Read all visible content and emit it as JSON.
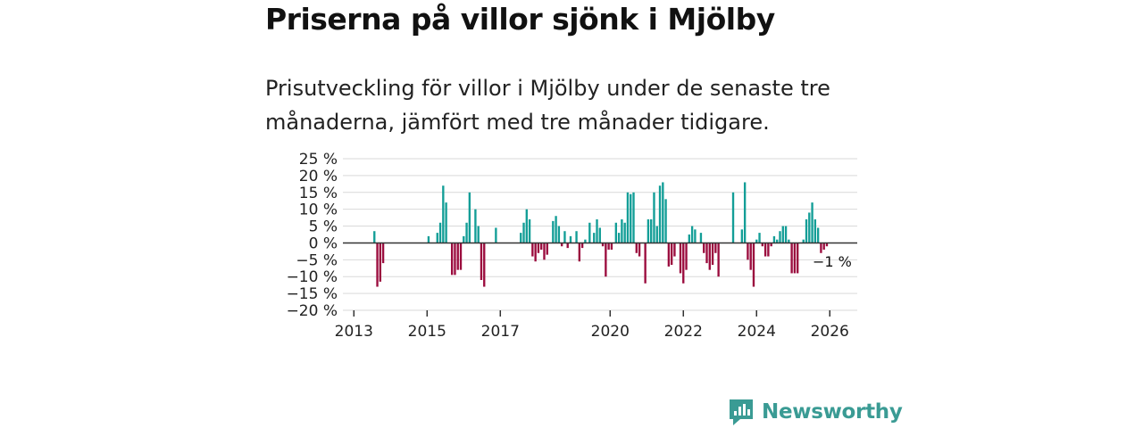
{
  "header": {
    "title": "Priserna på villor sjönk i Mjölby",
    "subtitle": "Prisutveckling för villor i Mjölby under de senaste tre månaderna, jämfört med tre månader tidigare."
  },
  "brand": {
    "name": "Newsworthy",
    "color": "#3a9b94"
  },
  "colors": {
    "positive": "#139e97",
    "negative": "#9b0c3e",
    "grid": "#d9d9d9",
    "zero": "#333333"
  },
  "chart_data": {
    "type": "bar",
    "title": "Priserna på villor sjönk i Mjölby",
    "ylabel": "",
    "xlabel": "",
    "ylim": [
      -20,
      25
    ],
    "y_ticks": [
      25,
      20,
      15,
      10,
      5,
      0,
      -5,
      -10,
      -15,
      -20
    ],
    "y_tick_labels": [
      "25 %",
      "20 %",
      "15 %",
      "10 %",
      "5 %",
      "0 %",
      "−5 %",
      "−10 %",
      "−15 %",
      "−20 %"
    ],
    "x_range": [
      2012.7,
      2026.75
    ],
    "x_ticks": [
      2013,
      2015,
      2017,
      2020,
      2022,
      2024,
      2026
    ],
    "x_tick_labels": [
      "2013",
      "2015",
      "2017",
      "2020",
      "2022",
      "2024",
      "2026"
    ],
    "annotation": {
      "text": "−1 %",
      "x": 2025.92,
      "y": -1
    },
    "series": [
      {
        "name": "Prisutveckling",
        "points": [
          [
            2013.56,
            3.5
          ],
          [
            2013.64,
            -13
          ],
          [
            2013.72,
            -11.5
          ],
          [
            2013.8,
            -6
          ],
          [
            2015.04,
            2
          ],
          [
            2015.28,
            3
          ],
          [
            2015.36,
            6
          ],
          [
            2015.44,
            17
          ],
          [
            2015.52,
            12
          ],
          [
            2015.68,
            -9.5
          ],
          [
            2015.76,
            -9.5
          ],
          [
            2015.84,
            -8
          ],
          [
            2015.92,
            -8
          ],
          [
            2016.0,
            2
          ],
          [
            2016.08,
            6
          ],
          [
            2016.16,
            15
          ],
          [
            2016.32,
            10
          ],
          [
            2016.4,
            5
          ],
          [
            2016.48,
            -11
          ],
          [
            2016.56,
            -13
          ],
          [
            2016.88,
            4.5
          ],
          [
            2017.56,
            3
          ],
          [
            2017.64,
            6
          ],
          [
            2017.72,
            10
          ],
          [
            2017.8,
            7
          ],
          [
            2017.88,
            -4
          ],
          [
            2017.96,
            -5.5
          ],
          [
            2018.04,
            -3
          ],
          [
            2018.12,
            -2
          ],
          [
            2018.2,
            -5
          ],
          [
            2018.28,
            -3.5
          ],
          [
            2018.44,
            6.5
          ],
          [
            2018.52,
            8
          ],
          [
            2018.6,
            5
          ],
          [
            2018.68,
            -1
          ],
          [
            2018.76,
            3.5
          ],
          [
            2018.84,
            -1.5
          ],
          [
            2018.92,
            2
          ],
          [
            2019.08,
            3.5
          ],
          [
            2019.16,
            -5.5
          ],
          [
            2019.24,
            -1.5
          ],
          [
            2019.32,
            1
          ],
          [
            2019.44,
            6
          ],
          [
            2019.56,
            3
          ],
          [
            2019.64,
            7
          ],
          [
            2019.72,
            4.5
          ],
          [
            2019.8,
            -1
          ],
          [
            2019.88,
            -10
          ],
          [
            2019.96,
            -2
          ],
          [
            2020.04,
            -2
          ],
          [
            2020.16,
            6
          ],
          [
            2020.24,
            3
          ],
          [
            2020.32,
            7
          ],
          [
            2020.4,
            6
          ],
          [
            2020.48,
            15
          ],
          [
            2020.56,
            14.5
          ],
          [
            2020.64,
            15
          ],
          [
            2020.72,
            -3
          ],
          [
            2020.8,
            -4
          ],
          [
            2020.96,
            -12
          ],
          [
            2021.04,
            7
          ],
          [
            2021.12,
            7
          ],
          [
            2021.2,
            15
          ],
          [
            2021.28,
            5
          ],
          [
            2021.36,
            17
          ],
          [
            2021.44,
            18
          ],
          [
            2021.52,
            13
          ],
          [
            2021.6,
            -7
          ],
          [
            2021.68,
            -6.5
          ],
          [
            2021.76,
            -4
          ],
          [
            2021.92,
            -9
          ],
          [
            2022.0,
            -12
          ],
          [
            2022.08,
            -8
          ],
          [
            2022.16,
            2.5
          ],
          [
            2022.24,
            5
          ],
          [
            2022.32,
            4
          ],
          [
            2022.48,
            3
          ],
          [
            2022.56,
            -3
          ],
          [
            2022.64,
            -6
          ],
          [
            2022.72,
            -8
          ],
          [
            2022.8,
            -6.5
          ],
          [
            2022.88,
            -3
          ],
          [
            2022.96,
            -10
          ],
          [
            2023.36,
            15
          ],
          [
            2023.6,
            4
          ],
          [
            2023.68,
            18
          ],
          [
            2023.76,
            -5
          ],
          [
            2023.84,
            -8
          ],
          [
            2023.92,
            -13
          ],
          [
            2024.0,
            1
          ],
          [
            2024.08,
            3
          ],
          [
            2024.16,
            -1
          ],
          [
            2024.24,
            -4
          ],
          [
            2024.32,
            -4
          ],
          [
            2024.4,
            -1
          ],
          [
            2024.48,
            2
          ],
          [
            2024.56,
            1
          ],
          [
            2024.64,
            3.5
          ],
          [
            2024.72,
            5
          ],
          [
            2024.8,
            5
          ],
          [
            2024.88,
            1
          ],
          [
            2024.96,
            -9
          ],
          [
            2025.04,
            -9
          ],
          [
            2025.12,
            -9
          ],
          [
            2025.28,
            1
          ],
          [
            2025.36,
            7
          ],
          [
            2025.44,
            9
          ],
          [
            2025.52,
            12
          ],
          [
            2025.6,
            7
          ],
          [
            2025.68,
            4.5
          ],
          [
            2025.76,
            -3
          ],
          [
            2025.84,
            -2
          ],
          [
            2025.92,
            -1
          ]
        ]
      }
    ]
  }
}
